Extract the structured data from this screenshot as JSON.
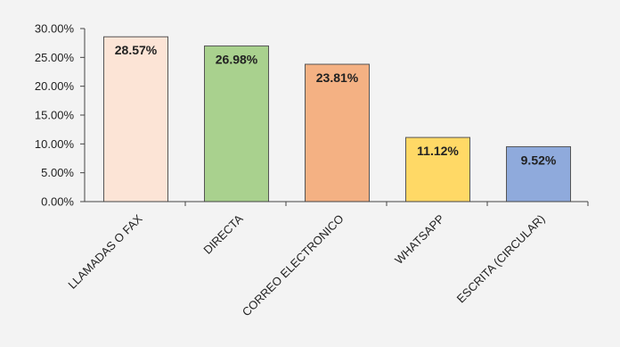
{
  "chart_data": {
    "type": "bar",
    "title": "",
    "xlabel": "",
    "ylabel": "",
    "categories": [
      "LLAMADAS O FAX",
      "DIRECTA",
      "CORREO ELECTRONICO",
      "WHATSAPP",
      "ESCRITA (CIRCULAR)"
    ],
    "values": [
      28.57,
      26.98,
      23.81,
      11.12,
      9.52
    ],
    "data_labels": [
      "28.57%",
      "26.98%",
      "23.81%",
      "11.12%",
      "9.52%"
    ],
    "ylim": [
      0,
      30
    ],
    "yticks": [
      0,
      5,
      10,
      15,
      20,
      25,
      30
    ],
    "ytick_labels": [
      "0.00%",
      "5.00%",
      "10.00%",
      "15.00%",
      "20.00%",
      "25.00%",
      "30.00%"
    ],
    "bar_colors": [
      "#fce4d6",
      "#a9d18e",
      "#f4b183",
      "#ffd966",
      "#8faadc"
    ],
    "bar_outline": "#555555",
    "grid": false,
    "legend": "none"
  }
}
